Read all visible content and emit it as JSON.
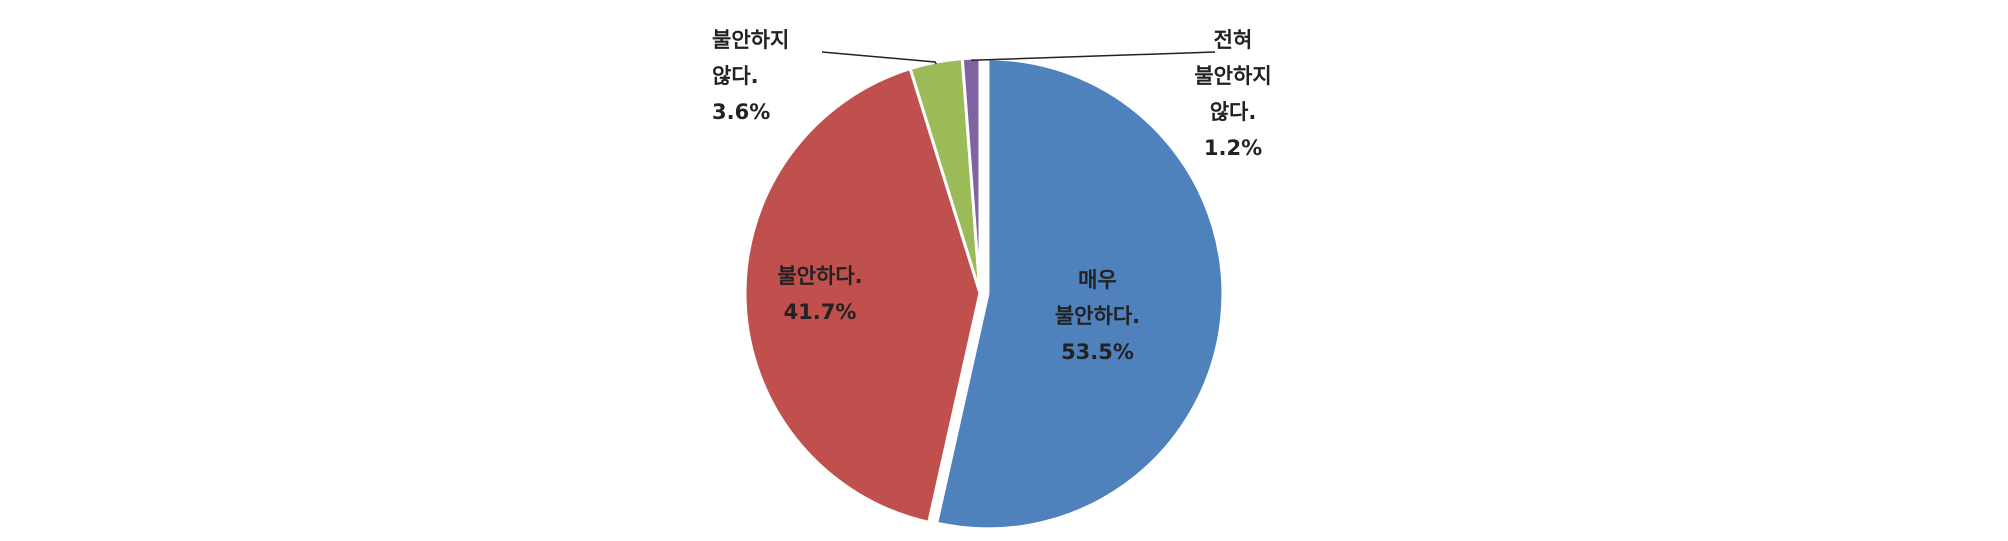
{
  "chart_data": {
    "type": "pie",
    "categories": [
      "매우 불안하다.",
      "불안하다.",
      "불안하지 않다.",
      "전혀 불안하지 않다."
    ],
    "values": [
      53.5,
      41.7,
      3.6,
      1.2
    ],
    "value_labels": [
      "53.5%",
      "41.7%",
      "3.6%",
      "1.2%"
    ],
    "colors": [
      "#4f81bd",
      "#c0504d",
      "#9bbb59",
      "#8064a2"
    ]
  }
}
